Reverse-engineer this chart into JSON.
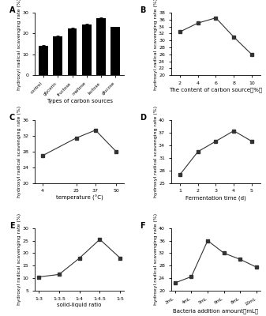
{
  "panel_A": {
    "categories": [
      "control",
      "glycerin",
      "fructose",
      "maltose",
      "lactose",
      "glucose"
    ],
    "values": [
      14.0,
      18.5,
      22.5,
      24.5,
      27.5,
      23.0
    ],
    "errors": [
      0.5,
      0.4,
      0.4,
      0.3,
      0.4,
      0.3
    ],
    "ylabel": "hydroxyl radical scavenging rate (%)",
    "xlabel": "Types of carbon sources",
    "ylim": [
      0,
      30
    ],
    "yticks": [
      0,
      10,
      20,
      30
    ],
    "bar_color": "#000000",
    "label": "A"
  },
  "panel_B": {
    "x": [
      2,
      4,
      6,
      8,
      10
    ],
    "y": [
      32.5,
      35.0,
      36.5,
      31.0,
      26.0
    ],
    "errors": [
      0.4,
      0.3,
      0.3,
      0.4,
      0.4
    ],
    "ylabel": "hydroxyl radical scavenging rate (%)",
    "xlabel": "The content of carbon source（%）",
    "ylim": [
      20,
      38
    ],
    "yticks": [
      20,
      22,
      24,
      26,
      28,
      30,
      32,
      34,
      36,
      38
    ],
    "label": "B"
  },
  "panel_C": {
    "x": [
      4,
      25,
      37,
      50
    ],
    "y": [
      27.0,
      31.5,
      33.5,
      28.0
    ],
    "errors": [
      0.4,
      0.4,
      0.4,
      0.4
    ],
    "ylabel": "hydroxyl radical scavenging rate (%)",
    "xlabel": "temperature (°C)",
    "ylim": [
      20,
      36
    ],
    "yticks": [
      20,
      24,
      28,
      32,
      36
    ],
    "label": "C"
  },
  "panel_D": {
    "x": [
      1,
      2,
      3,
      4,
      5
    ],
    "y": [
      27.0,
      32.5,
      35.0,
      37.5,
      35.0
    ],
    "errors": [
      0.4,
      0.4,
      0.3,
      0.3,
      0.3
    ],
    "ylabel": "hydroxyl radical scavenging rate (%)",
    "xlabel": "Fermentation time (d)",
    "ylim": [
      25,
      40
    ],
    "yticks": [
      25,
      28,
      31,
      34,
      37,
      40
    ],
    "label": "D"
  },
  "panel_E": {
    "x": [
      "1:3",
      "1:3.5",
      "1:4",
      "1:4.5",
      "1:5"
    ],
    "y": [
      10.5,
      11.5,
      18.0,
      25.5,
      18.0
    ],
    "errors": [
      0.4,
      0.4,
      0.4,
      0.4,
      0.4
    ],
    "ylabel": "hydroxyl radical scavenging rate (%)",
    "xlabel": "solid-liquid ratio",
    "ylim": [
      5,
      30
    ],
    "yticks": [
      5,
      10,
      15,
      20,
      25,
      30
    ],
    "label": "E"
  },
  "panel_F": {
    "x": [
      "2mL",
      "4mL",
      "5mL",
      "6mL",
      "8mL",
      "10mL"
    ],
    "y": [
      22.5,
      24.5,
      36.0,
      32.0,
      30.0,
      27.5
    ],
    "errors": [
      0.4,
      0.4,
      0.4,
      0.4,
      0.3,
      0.3
    ],
    "ylabel": "hydroxyl radical scavenging rate (%)",
    "xlabel": "Bacteria addition amount（mL）",
    "ylim": [
      20,
      40
    ],
    "yticks": [
      20,
      24,
      28,
      32,
      36,
      40
    ],
    "label": "F"
  },
  "line_color": "#333333",
  "marker": "s",
  "markersize": 2.5,
  "linewidth": 0.8,
  "fontsize_label": 5.0,
  "fontsize_tick": 4.5,
  "fontsize_panel": 7,
  "fontsize_ylabel": 4.5
}
